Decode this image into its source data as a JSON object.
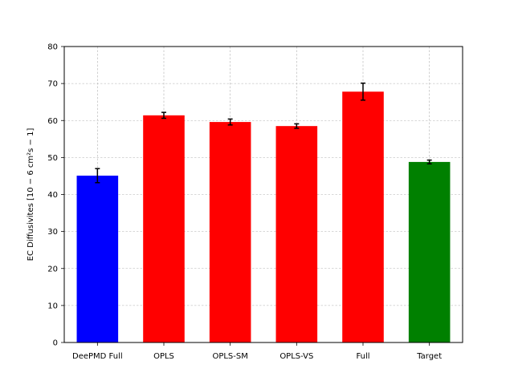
{
  "chart_data": {
    "type": "bar",
    "categories": [
      "DeePMD Full",
      "OPLS",
      "OPLS-SM",
      "OPLS-VS",
      "Full",
      "Target"
    ],
    "values": [
      45.1,
      61.4,
      59.6,
      58.5,
      67.8,
      48.8
    ],
    "errors": [
      1.9,
      0.8,
      0.8,
      0.6,
      2.3,
      0.5
    ],
    "colors": [
      "#0000ff",
      "#ff0000",
      "#ff0000",
      "#ff0000",
      "#ff0000",
      "#008000"
    ],
    "title": "",
    "xlabel": "",
    "ylabel": "EC Diffusivites [10 − 6 cm²s − 1]",
    "ylim": [
      0,
      80
    ],
    "yticks": [
      0,
      10,
      20,
      30,
      40,
      50,
      60,
      70,
      80
    ],
    "grid": true
  }
}
